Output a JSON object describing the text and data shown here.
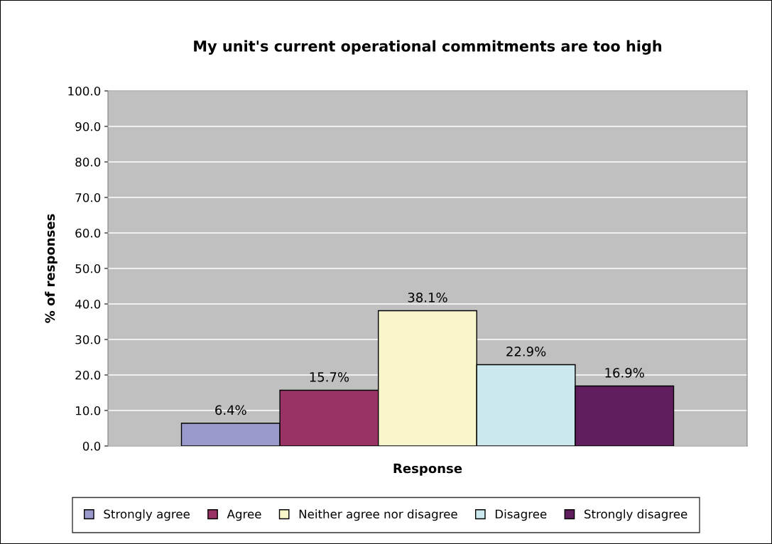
{
  "chart_data": {
    "type": "bar",
    "title": "My unit's current operational commitments are too high",
    "xlabel": "Response",
    "ylabel": "% of responses",
    "categories": [
      null
    ],
    "series": [
      {
        "name": "Strongly agree",
        "color": "#9999cc",
        "values": [
          6.4
        ],
        "value_labels": [
          "6.4%"
        ]
      },
      {
        "name": "Agree",
        "color": "#993366",
        "values": [
          15.7
        ],
        "value_labels": [
          "15.7%"
        ]
      },
      {
        "name": "Neither agree nor disagree",
        "color": "#f9f6cc",
        "values": [
          38.1
        ],
        "value_labels": [
          "38.1%"
        ]
      },
      {
        "name": "Disagree",
        "color": "#cde9f0",
        "values": [
          22.9
        ],
        "value_labels": [
          "22.9%"
        ]
      },
      {
        "name": "Strongly disagree",
        "color": "#601e5e",
        "values": [
          16.9
        ],
        "value_labels": [
          "16.9%"
        ]
      }
    ],
    "ylim": [
      0,
      100
    ],
    "yticks": [
      {
        "value": 0,
        "label": "0.0"
      },
      {
        "value": 10,
        "label": "10.0"
      },
      {
        "value": 20,
        "label": "20.0"
      },
      {
        "value": 30,
        "label": "30.0"
      },
      {
        "value": 40,
        "label": "40.0"
      },
      {
        "value": 50,
        "label": "50.0"
      },
      {
        "value": 60,
        "label": "60.0"
      },
      {
        "value": 70,
        "label": "70.0"
      },
      {
        "value": 80,
        "label": "80.0"
      },
      {
        "value": 90,
        "label": "90.0"
      },
      {
        "value": 100,
        "label": "100.0"
      }
    ],
    "grid": "y",
    "legend": "bottom"
  }
}
